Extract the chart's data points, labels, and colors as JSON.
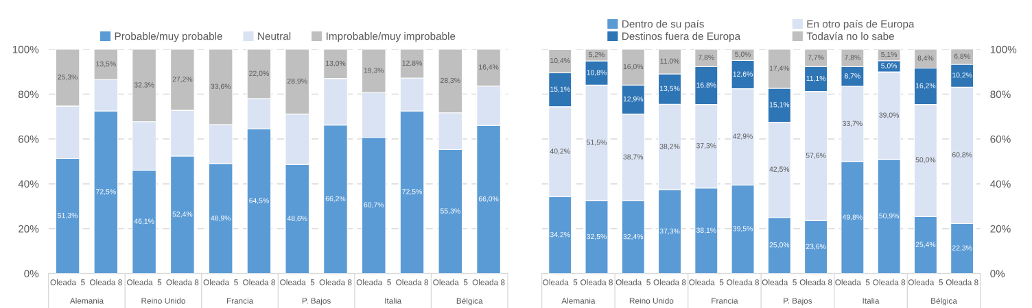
{
  "chart_data": [
    {
      "type": "bar",
      "stacked": true,
      "legend": "top",
      "grid": "y",
      "categories": [
        "Oleada  5",
        "Oleada 8",
        "Oleada  5",
        "Oleada 8",
        "Oleada  5",
        "Oleada 8",
        "Oleada  5",
        "Oleada 8",
        "Oleada  5",
        "Oleada 8",
        "Oleada  5",
        "Oleada 8"
      ],
      "annotations": [
        "Alemania",
        "Reino Unido",
        "Francia",
        "P. Bajos",
        "Italia",
        "Bélgica"
      ],
      "ylim": [
        0,
        100
      ],
      "yticks": [
        {
          "value": 0,
          "label": "0%"
        },
        {
          "value": 20,
          "label": "20%"
        },
        {
          "value": 40,
          "label": "40%"
        },
        {
          "value": 60,
          "label": "60%"
        },
        {
          "value": 80,
          "label": "80%"
        },
        {
          "value": 100,
          "label": "100%"
        }
      ],
      "series": [
        {
          "name": "Probable/muy probable",
          "color": "#5b9bd5",
          "values": [
            51.3,
            72.5,
            46.1,
            52.4,
            48.9,
            64.5,
            48.6,
            66.2,
            60.7,
            72.5,
            55.3,
            66.0
          ],
          "value_labels": [
            "51,3%",
            "72,5%",
            "46,1%",
            "52,4%",
            "48,9%",
            "64,5%",
            "48,6%",
            "66,2%",
            "60,7%",
            "72,5%",
            "55,3%",
            "66,0%"
          ]
        },
        {
          "name": "Neutral",
          "color": "#dae3f3",
          "values": [
            23.4,
            14.0,
            21.6,
            20.4,
            17.5,
            13.5,
            22.5,
            20.8,
            20.0,
            14.7,
            16.4,
            17.6
          ]
        },
        {
          "name": "Improbable/muy improbable",
          "color": "#bfbfbf",
          "values": [
            25.3,
            13.5,
            32.3,
            27.2,
            33.6,
            22.0,
            28.9,
            13.0,
            19.3,
            12.8,
            28.3,
            16.4
          ],
          "value_labels": [
            "25,3%",
            "13,5%",
            "32,3%",
            "27,2%",
            "33,6%",
            "22,0%",
            "28,9%",
            "13,0%",
            "19,3%",
            "12,8%",
            "28,3%",
            "16,4%"
          ]
        }
      ]
    },
    {
      "type": "bar",
      "stacked": true,
      "legend": "top",
      "grid": "y",
      "categories": [
        "Oleada  5",
        "Oleada 8",
        "Oleada  5",
        "Oleada 8",
        "Oleada  5",
        "Oleada 8",
        "Oleada  5",
        "Oleada 8",
        "Oleada  5",
        "Oleada 8",
        "Oleada  5",
        "Oleada 8"
      ],
      "annotations": [
        "Alemania",
        "Reino Unido",
        "Francia",
        "P. Bajos",
        "Italia",
        "Bélgica"
      ],
      "y2lim": [
        0,
        100
      ],
      "y2ticks": [
        {
          "value": 0,
          "label": "0%"
        },
        {
          "value": 20,
          "label": "20%"
        },
        {
          "value": 40,
          "label": "40%"
        },
        {
          "value": 60,
          "label": "60%"
        },
        {
          "value": 80,
          "label": "80%"
        },
        {
          "value": 100,
          "label": "100%"
        }
      ],
      "series": [
        {
          "name": "Dentro de su país",
          "color": "#5b9bd5",
          "axis": "y2",
          "values": [
            34.2,
            32.5,
            32.4,
            37.3,
            38.1,
            39.5,
            25.0,
            23.6,
            49.8,
            50.9,
            25.4,
            22.3
          ],
          "value_labels": [
            "34,2%",
            "32,5%",
            "32,4%",
            "37,3%",
            "38,1%",
            "39,5%",
            "25,0%",
            "23,6%",
            "49,8%",
            "50,9%",
            "25,4%",
            "22,3%"
          ]
        },
        {
          "name": "En otro país de Europa",
          "color": "#dae3f3",
          "axis": "y2",
          "values": [
            40.2,
            51.5,
            38.7,
            38.2,
            37.3,
            42.9,
            42.5,
            57.6,
            33.7,
            39.0,
            50.0,
            60.8
          ],
          "value_labels": [
            "40,2%",
            "51,5%",
            "38,7%",
            "38,2%",
            "37,3%",
            "42,9%",
            "42,5%",
            "57,6%",
            "33,7%",
            "39,0%",
            "50,0%",
            "60,8%"
          ]
        },
        {
          "name": "Destinos fuera de Europa",
          "color": "#2e75b6",
          "axis": "y2",
          "values": [
            15.1,
            10.8,
            12.9,
            13.5,
            16.8,
            12.6,
            15.1,
            11.1,
            8.7,
            5.0,
            16.2,
            10.2
          ],
          "value_labels": [
            "15,1%",
            "10,8%",
            "12,9%",
            "13,5%",
            "16,8%",
            "12,6%",
            "15,1%",
            "11,1%",
            "8,7%",
            "5,0%",
            "16,2%",
            "10,2%"
          ]
        },
        {
          "name": "Todavía no lo sabe",
          "color": "#bfbfbf",
          "axis": "y2",
          "values": [
            10.4,
            5.2,
            16.0,
            11.0,
            7.8,
            5.0,
            17.4,
            7.7,
            7.8,
            5.1,
            8.4,
            6.8
          ],
          "value_labels": [
            "10,4%",
            "5,2%",
            "16,0%",
            "11,0%",
            "7,8%",
            "5,0%",
            "17,4%",
            "7,7%",
            "7,8%",
            "5,1%",
            "8,4%",
            "6,8%"
          ]
        }
      ]
    }
  ]
}
